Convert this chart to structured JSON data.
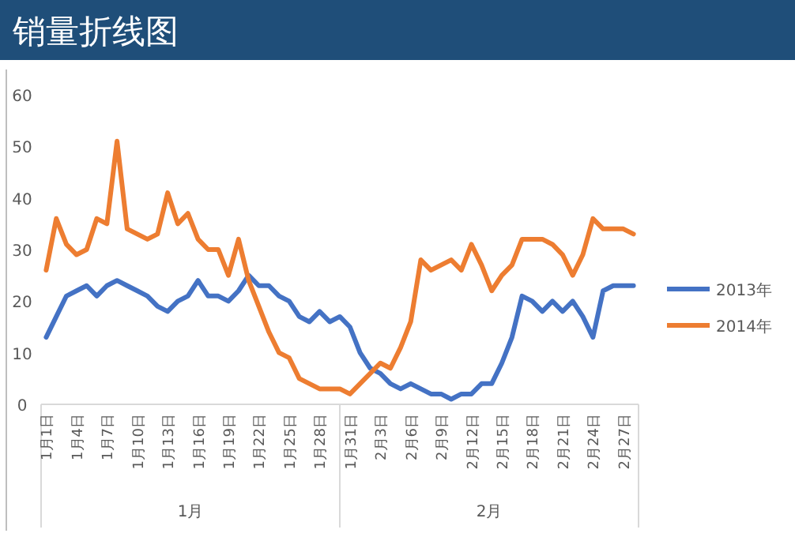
{
  "chart_data": {
    "type": "line",
    "title": "销量折线图",
    "categories": [
      "1月1日",
      null,
      null,
      "1月4日",
      null,
      null,
      "1月7日",
      null,
      null,
      "1月10日",
      null,
      null,
      "1月13日",
      null,
      null,
      "1月16日",
      null,
      null,
      "1月19日",
      null,
      null,
      "1月22日",
      null,
      null,
      "1月25日",
      null,
      null,
      "1月28日",
      null,
      null,
      "1月31日",
      null,
      null,
      "2月3日",
      null,
      null,
      "2月6日",
      null,
      null,
      "2月9日",
      null,
      null,
      "2月12日",
      null,
      null,
      "2月15日",
      null,
      null,
      "2月18日",
      null,
      null,
      "2月21日",
      null,
      null,
      "2月24日",
      null,
      null,
      "2月27日",
      null
    ],
    "series": [
      {
        "name": "2013年",
        "color": "#4472c4",
        "values": [
          13,
          17,
          21,
          22,
          23,
          21,
          23,
          24,
          23,
          22,
          21,
          19,
          18,
          20,
          21,
          24,
          21,
          21,
          20,
          22,
          25,
          23,
          23,
          21,
          20,
          17,
          16,
          18,
          16,
          17,
          15,
          10,
          7,
          6,
          4,
          3,
          4,
          3,
          2,
          2,
          1,
          2,
          2,
          4,
          4,
          8,
          13,
          21,
          20,
          18,
          20,
          18,
          20,
          17,
          13,
          22,
          23,
          23,
          23
        ]
      },
      {
        "name": "2014年",
        "color": "#ed7d31",
        "values": [
          26,
          36,
          31,
          29,
          30,
          36,
          35,
          51,
          34,
          33,
          32,
          33,
          41,
          35,
          37,
          32,
          30,
          30,
          25,
          32,
          24,
          19,
          14,
          10,
          9,
          5,
          4,
          3,
          3,
          3,
          2,
          4,
          6,
          8,
          7,
          11,
          16,
          28,
          26,
          27,
          28,
          26,
          31,
          27,
          22,
          25,
          27,
          32,
          32,
          32,
          31,
          29,
          25,
          29,
          36,
          34,
          34,
          34,
          33
        ]
      }
    ],
    "ylim": [
      0,
      60
    ],
    "yticks": [
      0,
      10,
      20,
      30,
      40,
      50,
      60
    ],
    "legend": "right",
    "line_style": "solid",
    "annotations": [
      "1月",
      "2月"
    ]
  }
}
